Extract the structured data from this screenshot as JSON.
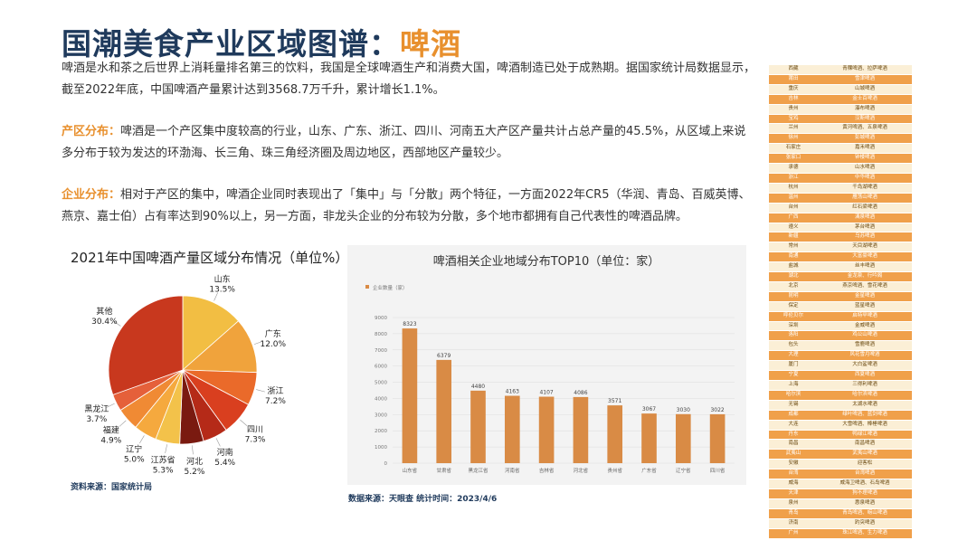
{
  "header": {
    "title_main": "国潮美食产业区域图谱：",
    "title_highlight": "啤酒"
  },
  "intro": "啤酒是水和茶之后世界上消耗量排名第三的饮料，我国是全球啤酒生产和消费大国，啤酒制造已处于成熟期。据国家统计局数据显示，截至2022年底，中国啤酒产量累计达到3568.7万千升，累计增长1.1%。",
  "region_section": {
    "lead": "产区分布：",
    "text": "啤酒是一个产区集中度较高的行业，山东、广东、浙江、四川、河南五大产区产量共计占总产量的45.5%，从区域上来说多分布于较为发达的环渤海、长三角、珠三角经济圈及周边地区，西部地区产量较少。"
  },
  "company_section": {
    "lead": "企业分布：",
    "text": "相对于产区的集中，啤酒企业同时表现出了「集中」与「分散」两个特征，一方面2022年CR5（华润、青岛、百威英博、燕京、嘉士伯）占有率达到90%以上，另一方面，非龙头企业的分布较为分散，多个地市都拥有自己代表性的啤酒品牌。"
  },
  "pie_source": "资料来源：国家统计局",
  "bar_source": "数据来源：天眼查  统计时间：2023/4/6",
  "colors": {
    "accent": "#e8902e",
    "title": "#1f3a5c",
    "bar": "#d98b45"
  },
  "chart_data": [
    {
      "type": "pie",
      "title": "2021年中国啤酒产量区域分布情况（单位%）",
      "slices": [
        {
          "label": "山东",
          "value": 13.5,
          "display": "13.5%",
          "color": "#f2be43"
        },
        {
          "label": "广东",
          "value": 12.0,
          "display": "12.0%",
          "color": "#f0a33c"
        },
        {
          "label": "浙江",
          "value": 7.2,
          "display": "7.2%",
          "color": "#ea6a2a"
        },
        {
          "label": "四川",
          "value": 7.3,
          "display": "7.3%",
          "color": "#d93f1f"
        },
        {
          "label": "河南",
          "value": 5.4,
          "display": "5.4%",
          "color": "#b52a18"
        },
        {
          "label": "河北",
          "value": 5.2,
          "display": "5.2%",
          "color": "#7a1a10"
        },
        {
          "label": "江苏省",
          "value": 5.3,
          "display": "5.3%",
          "color": "#f3c24a"
        },
        {
          "label": "辽宁",
          "value": 5.0,
          "display": "5.0%",
          "color": "#f5a93e"
        },
        {
          "label": "福建",
          "value": 4.9,
          "display": "4.9%",
          "color": "#f08a34"
        },
        {
          "label": "黑龙江",
          "value": 3.7,
          "display": "3.7%",
          "color": "#e5603a"
        },
        {
          "label": "其他",
          "value": 30.4,
          "display": "30.4%",
          "color": "#c8381e"
        }
      ]
    },
    {
      "type": "bar",
      "title": "啤酒相关企业地域分布TOP10（单位：家）",
      "legend": "企业数量（家）",
      "categories": [
        "山东省",
        "甘肃省",
        "黑龙江省",
        "河南省",
        "吉林省",
        "河北省",
        "贵州省",
        "广东省",
        "辽宁省",
        "四川省"
      ],
      "values": [
        8323,
        6379,
        4480,
        4163,
        4107,
        4086,
        3571,
        3067,
        3030,
        3022
      ],
      "ylim": [
        0,
        9000
      ],
      "yticks": [
        0,
        1000,
        2000,
        3000,
        4000,
        5000,
        6000,
        7000,
        8000,
        9000
      ]
    }
  ],
  "brand_table": [
    [
      "西藏",
      "青稞啤酒、拉萨啤酒"
    ],
    [
      "莆田",
      "雪津啤酒"
    ],
    [
      "重庆",
      "山城啤酒"
    ],
    [
      "吉林",
      "金士百啤酒"
    ],
    [
      "贵州",
      "瀑布啤酒"
    ],
    [
      "宝鸡",
      "汉斯啤酒"
    ],
    [
      "兰州",
      "黄河啤酒、五泉啤酒"
    ],
    [
      "徐州",
      "彭城啤酒"
    ],
    [
      "石家庄",
      "嘉禾啤酒"
    ],
    [
      "张家口",
      "钟楼啤酒"
    ],
    [
      "承德",
      "山水啤酒"
    ],
    [
      "浙江",
      "中华啤酒"
    ],
    [
      "杭州",
      "千岛湖啤酒"
    ],
    [
      "温州",
      "雁荡山啤酒"
    ],
    [
      "台州",
      "红石梁啤酒"
    ],
    [
      "广西",
      "漓泉啤酒"
    ],
    [
      "遵义",
      "茅台啤酒"
    ],
    [
      "新疆",
      "乌苏啤酒"
    ],
    [
      "常州",
      "天目湖啤酒"
    ],
    [
      "南通",
      "大富豪啤酒"
    ],
    [
      "盐城",
      "丝丰啤酒"
    ],
    [
      "湖北",
      "金龙泉、行吟阁"
    ],
    [
      "北京",
      "燕京啤酒、雪花啤酒"
    ],
    [
      "昆明",
      "金星啤酒"
    ],
    [
      "保定",
      "蓝星啤酒"
    ],
    [
      "呼伦贝尔",
      "启特罕啤酒"
    ],
    [
      "深圳",
      "金威啤酒"
    ],
    [
      "洛阳",
      "鸡公山啤酒"
    ],
    [
      "包头",
      "雪鹿啤酒"
    ],
    [
      "大理",
      "风花雪月啤酒"
    ],
    [
      "厦门",
      "大白鲨啤酒"
    ],
    [
      "宁夏",
      "西夏啤酒"
    ],
    [
      "上海",
      "三得利啤酒"
    ],
    [
      "哈尔滨",
      "哈尔滨啤酒"
    ],
    [
      "无锡",
      "太湖水啤酒"
    ],
    [
      "成都",
      "绿叶啤酒、蓝剑啤酒"
    ],
    [
      "大连",
      "大雪啤酒、棒棰啤酒"
    ],
    [
      "丹东",
      "鸭绿江啤酒"
    ],
    [
      "南昌",
      "南昌啤酒"
    ],
    [
      "武夷山",
      "武夷山啤酒"
    ],
    [
      "安徽",
      "迎客松"
    ],
    [
      "台湾",
      "台湾啤酒"
    ],
    [
      "威海",
      "威海卫啤酒、石岛啤酒"
    ],
    [
      "天津",
      "狗不理啤酒"
    ],
    [
      "泉州",
      "惠泉啤酒"
    ],
    [
      "青岛",
      "青岛啤酒、崂山啤酒"
    ],
    [
      "济南",
      "趵突啤酒"
    ],
    [
      "广州",
      "珠江啤酒、生力啤酒"
    ]
  ]
}
